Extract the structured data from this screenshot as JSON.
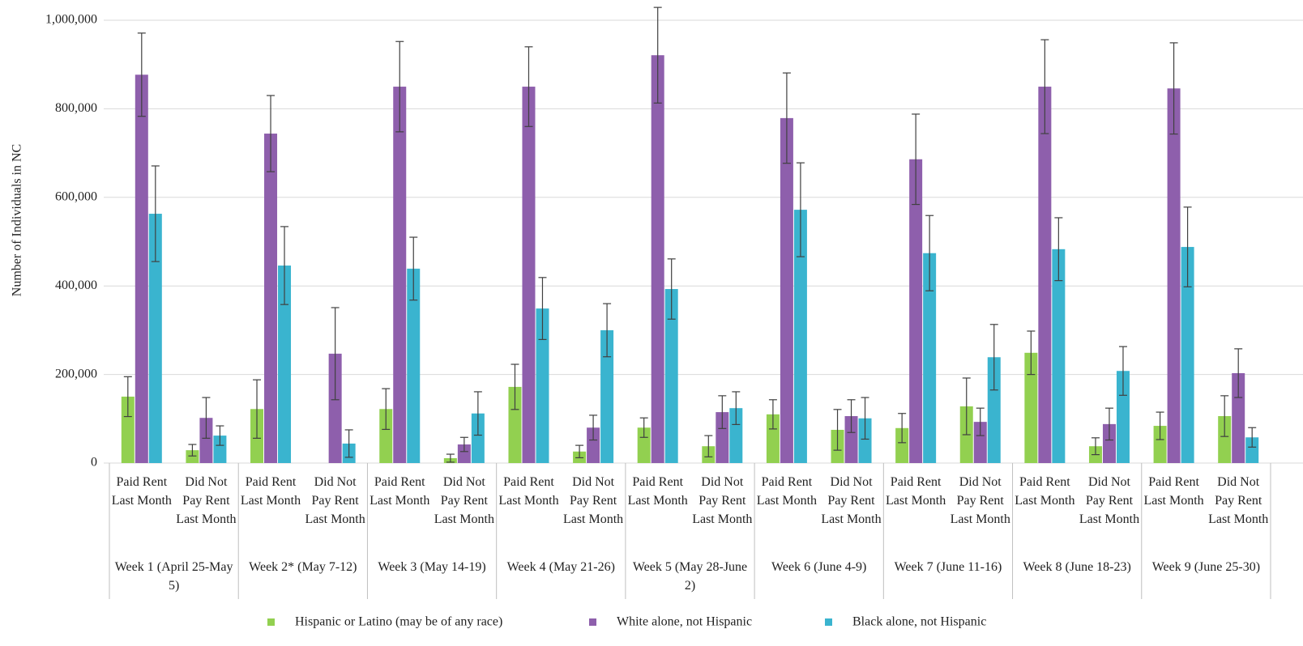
{
  "chart_data": {
    "type": "bar",
    "y_label": "Number of Individuals in NC",
    "groups": [
      "Week 1 (April 25-May 5)",
      "Week 2* (May 7-12)",
      "Week 3 (May 14-19)",
      "Week 4 (May 21-26)",
      "Week 5 (May 28-June 2)",
      "Week 6 (June 4-9)",
      "Week 7 (June 11-16)",
      "Week 8 (June 18-23)",
      "Week 9 (June 25-30)"
    ],
    "categories": [
      "Paid Rent Last Month",
      "Did Not Pay Rent Last Month",
      "Paid Rent Last Month",
      "Did Not Pay Rent Last Month",
      "Paid Rent Last Month",
      "Did Not Pay Rent Last Month",
      "Paid Rent Last Month",
      "Did Not Pay Rent Last Month",
      "Paid Rent Last Month",
      "Did Not Pay Rent Last Month",
      "Paid Rent Last Month",
      "Did Not Pay Rent Last Month",
      "Paid Rent Last Month",
      "Did Not Pay Rent Last Month",
      "Paid Rent Last Month",
      "Did Not Pay Rent Last Month",
      "Paid Rent Last Month",
      "Did Not Pay Rent Last Month"
    ],
    "series": [
      {
        "name": "Hispanic or Latino (may be of any race)",
        "color": "#92d050",
        "values": [
          150000,
          29000,
          122000,
          null,
          122000,
          11000,
          172000,
          26000,
          80000,
          38000,
          110000,
          75000,
          79000,
          128000,
          249000,
          38000,
          84000,
          106000
        ],
        "errors": [
          45000,
          13000,
          66000,
          null,
          46000,
          9000,
          51000,
          14000,
          22000,
          24000,
          33000,
          46000,
          33000,
          64000,
          49000,
          19000,
          31000,
          46000
        ]
      },
      {
        "name": "White alone, not Hispanic",
        "color": "#8e5fac",
        "values": [
          877000,
          102000,
          744000,
          247000,
          850000,
          42000,
          850000,
          80000,
          921000,
          115000,
          779000,
          106000,
          686000,
          93000,
          850000,
          88000,
          846000,
          203000
        ],
        "errors": [
          94000,
          46000,
          86000,
          104000,
          102000,
          16000,
          90000,
          28000,
          108000,
          37000,
          102000,
          37000,
          102000,
          31000,
          106000,
          36000,
          103000,
          55000
        ]
      },
      {
        "name": "Black alone, not Hispanic",
        "color": "#3ab4cf",
        "values": [
          563000,
          62000,
          446000,
          44000,
          439000,
          112000,
          349000,
          300000,
          393000,
          124000,
          572000,
          101000,
          474000,
          239000,
          483000,
          208000,
          488000,
          58000
        ],
        "errors": [
          108000,
          22000,
          88000,
          31000,
          71000,
          49000,
          70000,
          60000,
          68000,
          37000,
          106000,
          47000,
          85000,
          74000,
          71000,
          55000,
          90000,
          22000
        ]
      }
    ],
    "ylim": [
      0,
      1000000
    ],
    "yticks": [
      0,
      {
        "value": 200000,
        "label": "200,000"
      },
      {
        "value": 400000,
        "label": "400,000"
      },
      {
        "value": 600000,
        "label": "600,000"
      },
      {
        "value": 800000,
        "label": "800,000"
      },
      {
        "value": 1000000,
        "label": "1,000,000"
      }
    ],
    "grid": true,
    "legend": "bottom"
  }
}
